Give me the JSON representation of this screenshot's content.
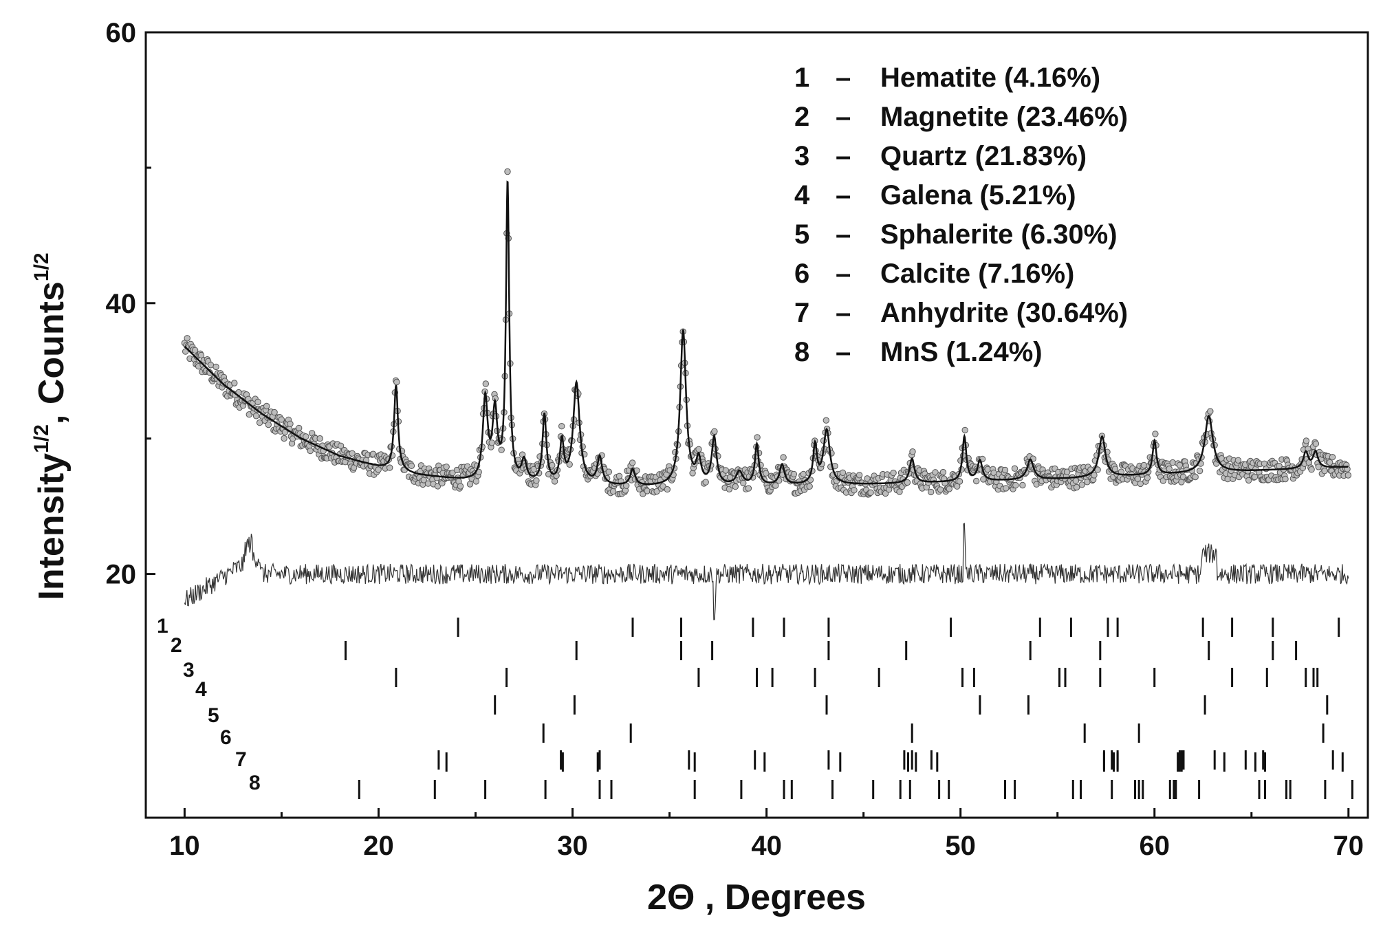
{
  "chart_data": {
    "type": "scatter",
    "xlabel": "2Θ , Degrees",
    "ylabel_parts": {
      "a": "Intensity",
      "sup1": "1/2",
      "b": ", Counts",
      "sup2": "1/2"
    },
    "xlim": [
      8,
      71
    ],
    "ylim": [
      2,
      60
    ],
    "x_ticks": [
      10,
      20,
      30,
      40,
      50,
      60,
      70
    ],
    "y_ticks": [
      20,
      40,
      60
    ],
    "grid": false,
    "legend_position": "top-right",
    "legend": [
      {
        "num": "1",
        "dash": "–",
        "label": "Hematite (4.16%)"
      },
      {
        "num": "2",
        "dash": "–",
        "label": "Magnetite (23.46%)"
      },
      {
        "num": "3",
        "dash": "–",
        "label": "Quartz (21.83%)"
      },
      {
        "num": "4",
        "dash": "–",
        "label": "Galena (5.21%)"
      },
      {
        "num": "5",
        "dash": "–",
        "label": "Sphalerite (6.30%)"
      },
      {
        "num": "6",
        "dash": "–",
        "label": "Calcite (7.16%)"
      },
      {
        "num": "7",
        "dash": "–",
        "label": "Anhydrite (30.64%)"
      },
      {
        "num": "8",
        "dash": "–",
        "label": "MnS (1.24%)"
      }
    ],
    "background": {
      "x": [
        10,
        12,
        14,
        16,
        18,
        20,
        22,
        25,
        30,
        35,
        40,
        45,
        50,
        55,
        60,
        65,
        70
      ],
      "y": [
        36.8,
        34.0,
        31.8,
        30.0,
        28.7,
        27.9,
        27.3,
        26.8,
        26.5,
        26.4,
        26.5,
        26.6,
        26.8,
        27.0,
        27.3,
        27.6,
        27.9
      ]
    },
    "peaks": [
      {
        "x": 20.9,
        "height": 6.3,
        "width": 0.12
      },
      {
        "x": 25.5,
        "height": 6.0,
        "width": 0.15
      },
      {
        "x": 26.0,
        "height": 5.0,
        "width": 0.15
      },
      {
        "x": 26.65,
        "height": 22.0,
        "width": 0.1
      },
      {
        "x": 27.5,
        "height": 1.5,
        "width": 0.15
      },
      {
        "x": 28.55,
        "height": 5.0,
        "width": 0.12
      },
      {
        "x": 29.45,
        "height": 3.0,
        "width": 0.12
      },
      {
        "x": 30.2,
        "height": 7.5,
        "width": 0.2
      },
      {
        "x": 31.4,
        "height": 2.0,
        "width": 0.15
      },
      {
        "x": 33.1,
        "height": 1.2,
        "width": 0.15
      },
      {
        "x": 35.7,
        "height": 11.5,
        "width": 0.18
      },
      {
        "x": 36.5,
        "height": 1.8,
        "width": 0.15
      },
      {
        "x": 37.3,
        "height": 3.5,
        "width": 0.15
      },
      {
        "x": 38.6,
        "height": 1.0,
        "width": 0.2
      },
      {
        "x": 39.5,
        "height": 3.0,
        "width": 0.12
      },
      {
        "x": 40.8,
        "height": 1.5,
        "width": 0.15
      },
      {
        "x": 42.5,
        "height": 2.8,
        "width": 0.12
      },
      {
        "x": 43.1,
        "height": 4.0,
        "width": 0.2
      },
      {
        "x": 47.5,
        "height": 1.8,
        "width": 0.15
      },
      {
        "x": 50.2,
        "height": 3.3,
        "width": 0.12
      },
      {
        "x": 51.0,
        "height": 1.5,
        "width": 0.15
      },
      {
        "x": 53.6,
        "height": 1.5,
        "width": 0.2
      },
      {
        "x": 57.3,
        "height": 3.0,
        "width": 0.2
      },
      {
        "x": 60.0,
        "height": 2.5,
        "width": 0.12
      },
      {
        "x": 62.8,
        "height": 4.2,
        "width": 0.25
      },
      {
        "x": 67.8,
        "height": 1.2,
        "width": 0.15
      },
      {
        "x": 68.3,
        "height": 1.2,
        "width": 0.15
      }
    ],
    "difference_baseline": 20,
    "tick_rows": [
      {
        "label": "1",
        "y": 16.0,
        "positions": [
          24.1,
          33.1,
          35.6,
          39.3,
          40.9,
          43.2,
          49.5,
          54.1,
          55.7,
          57.6,
          58.1,
          62.5,
          64.0,
          66.1,
          69.5
        ]
      },
      {
        "label": "2",
        "y": 14.0,
        "positions": [
          18.3,
          30.2,
          35.6,
          37.2,
          43.2,
          47.2,
          53.6,
          57.2,
          62.8,
          66.1,
          67.3
        ]
      },
      {
        "label": "3",
        "y": 11.7,
        "positions": [
          20.9,
          26.6,
          36.5,
          39.5,
          40.3,
          42.5,
          45.8,
          50.1,
          50.7,
          55.1,
          55.4,
          57.2,
          60.0,
          64.0,
          65.8,
          67.8,
          68.2,
          68.4
        ]
      },
      {
        "label": "4",
        "y": 9.6,
        "positions": [
          26.0,
          30.1,
          43.1,
          51.0,
          53.5,
          62.6,
          68.9
        ]
      },
      {
        "label": "5",
        "y": 7.5,
        "positions": [
          28.5,
          33.0,
          47.5,
          56.4,
          59.2,
          68.7
        ]
      },
      {
        "label": "6",
        "y": 5.4,
        "positions": [
          23.1,
          29.4,
          31.4,
          36.0,
          39.4,
          43.2,
          47.1,
          47.5,
          48.5,
          57.4,
          57.8,
          58.1,
          61.3,
          61.4,
          61.5,
          63.1,
          64.7,
          65.6,
          69.2
        ]
      },
      {
        "label": "7",
        "y": 3.2,
        "positions": [
          23.5,
          29.5,
          31.3,
          36.3,
          39.9,
          43.8,
          47.3,
          47.7,
          48.8,
          57.4,
          57.9,
          58.1,
          61.2,
          61.3,
          61.4,
          63.6,
          65.2,
          65.7,
          69.7
        ]
      },
      {
        "label": "8",
        "y": 3.0,
        "positions": [
          19.0,
          22.9,
          25.5,
          28.6,
          31.4,
          32.0,
          36.3,
          38.7,
          40.9,
          41.3,
          43.4,
          45.5,
          46.9,
          47.4,
          48.9,
          49.4,
          52.3,
          52.8,
          55.8,
          56.2,
          57.8,
          59.0,
          59.2,
          59.4,
          60.8,
          61.0,
          61.1,
          62.3,
          65.4,
          65.7,
          66.8,
          67.0,
          68.8,
          70.2
        ]
      }
    ]
  }
}
